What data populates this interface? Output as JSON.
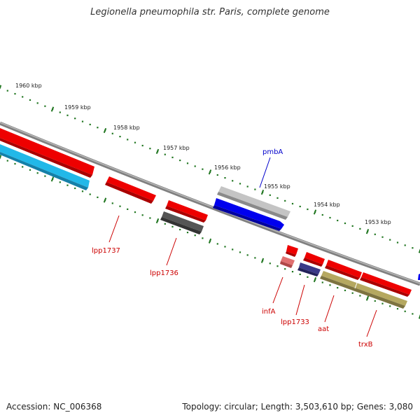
{
  "title": "Legionella pneumophila str. Paris, complete genome",
  "footer": {
    "accession": "Accession: NC_006368",
    "topology": "Topology: circular; Length: 3,503,610 bp; Genes: 3,080"
  },
  "ticks": [
    "1960 kbp",
    "1959 kbp",
    "1958 kbp",
    "1957 kbp",
    "1956 kbp",
    "1955 kbp",
    "1954 kbp",
    "1953 kbp"
  ],
  "gene_labels": [
    {
      "text": "pmbA",
      "color": "#0000cc"
    },
    {
      "text": "lpp1737",
      "color": "#cc0000"
    },
    {
      "text": "lpp1736",
      "color": "#cc0000"
    },
    {
      "text": "infA",
      "color": "#cc0000"
    },
    {
      "text": "lpp1733",
      "color": "#cc0000"
    },
    {
      "text": "aat",
      "color": "#cc0000"
    },
    {
      "text": "trxB",
      "color": "#cc0000"
    }
  ],
  "colors": {
    "backbone": "#808080",
    "forward_red": "#ee0000",
    "blue": "#0000ee",
    "cyan": "#22b8e8",
    "gray_light": "#bdbdbd",
    "gray_dark": "#555555",
    "olive": "#b5a860",
    "navy": "#3a3a88",
    "pink": "#e07070",
    "tick_green": "#227722"
  }
}
